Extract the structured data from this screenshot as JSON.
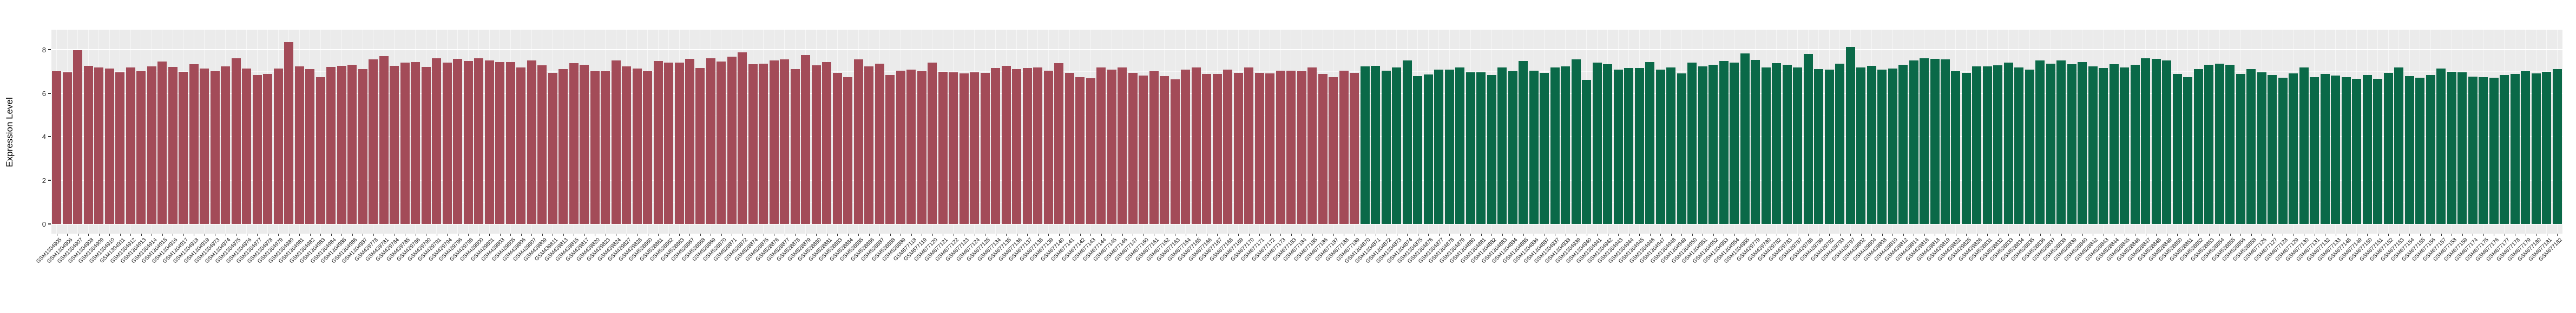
{
  "chart_data": {
    "type": "bar",
    "title": "",
    "xlabel": "",
    "ylabel": "Expression Level",
    "yticks": [
      0,
      2,
      4,
      6,
      8
    ],
    "yticks_minor": [
      1,
      3,
      5,
      7
    ],
    "ylim": [
      0,
      8.9
    ],
    "grid": "on",
    "legend": "none",
    "panel_background": "#EBEBEB",
    "grid_color": "#FFFFFF",
    "series": [
      {
        "name": "left-red-group",
        "color": "#A34B58",
        "labels": [
          "GSM1304905",
          "GSM1304906",
          "GSM1304907",
          "GSM1304908",
          "GSM1304909",
          "GSM1304910",
          "GSM1304911",
          "GSM1304912",
          "GSM1304913",
          "GSM1304914",
          "GSM1304915",
          "GSM1304916",
          "GSM1304917",
          "GSM1304918",
          "GSM1304919",
          "GSM1304973",
          "GSM1304974",
          "GSM1304975",
          "GSM1304976",
          "GSM1304977",
          "GSM1304978",
          "GSM1304979",
          "GSM1304980",
          "GSM1304981",
          "GSM1304982",
          "GSM1304983",
          "GSM1304984",
          "GSM1304985",
          "GSM1304986",
          "GSM1304987",
          "GSM439778",
          "GSM439781",
          "GSM439784",
          "GSM439785",
          "GSM439786",
          "GSM439790",
          "GSM439791",
          "GSM439794",
          "GSM439796",
          "GSM439798",
          "GSM439800",
          "GSM439801",
          "GSM439803",
          "GSM439805",
          "GSM439806",
          "GSM439807",
          "GSM439809",
          "GSM439811",
          "GSM439813",
          "GSM439815",
          "GSM439817",
          "GSM439820",
          "GSM439823",
          "GSM439824",
          "GSM439827",
          "GSM439828",
          "GSM528860",
          "GSM528861",
          "GSM528862",
          "GSM528863",
          "GSM528867",
          "GSM528868",
          "GSM528869",
          "GSM528870",
          "GSM528871",
          "GSM528872",
          "GSM528874",
          "GSM528875",
          "GSM528876",
          "GSM528877",
          "GSM528878",
          "GSM528879",
          "GSM528880",
          "GSM528881",
          "GSM528883",
          "GSM528884",
          "GSM528885",
          "GSM528886",
          "GSM528887",
          "GSM528888",
          "GSM528889",
          "GSM677118",
          "GSM677119",
          "GSM677120",
          "GSM677121",
          "GSM677122",
          "GSM677123",
          "GSM677124",
          "GSM677125",
          "GSM677134",
          "GSM677135",
          "GSM677136",
          "GSM677137",
          "GSM677138",
          "GSM677139",
          "GSM677140",
          "GSM677141",
          "GSM677142",
          "GSM677143",
          "GSM677144",
          "GSM677145",
          "GSM677146",
          "GSM677147",
          "GSM677160",
          "GSM677161",
          "GSM677162",
          "GSM677163",
          "GSM677164",
          "GSM677165",
          "GSM677166",
          "GSM677167",
          "GSM677168",
          "GSM677169",
          "GSM677170",
          "GSM677171",
          "GSM677172",
          "GSM677173",
          "GSM677183",
          "GSM677184",
          "GSM677185",
          "GSM677186",
          "GSM677187",
          "GSM677188",
          "GSM677189"
        ],
        "values": [
          7.0,
          6.95,
          7.97,
          7.26,
          7.17,
          7.12,
          6.95,
          7.18,
          7.0,
          7.24,
          7.45,
          7.21,
          6.98,
          7.33,
          7.14,
          7.0,
          7.23,
          7.61,
          7.14,
          6.84,
          6.89,
          7.14,
          8.35,
          7.23,
          7.1,
          6.73,
          7.2,
          7.26,
          7.31,
          7.1,
          7.55,
          7.69,
          7.26,
          7.41,
          7.43,
          7.2,
          7.6,
          7.39,
          7.57,
          7.47,
          7.59,
          7.49,
          7.43,
          7.43,
          7.19,
          7.49,
          7.27,
          6.94,
          7.11,
          7.37,
          7.29,
          7.0,
          7.0,
          7.49,
          7.23,
          7.13,
          7.0,
          7.47,
          7.39,
          7.39,
          7.57,
          7.15,
          7.59,
          7.45,
          7.67,
          7.87,
          7.33,
          7.35,
          7.49,
          7.55,
          7.11,
          7.75,
          7.27,
          7.43,
          6.94,
          6.74,
          7.55,
          7.23,
          7.35,
          6.84,
          7.04,
          7.09,
          7.0,
          7.41,
          6.98,
          6.96,
          6.9,
          6.96,
          6.92,
          7.15,
          7.25,
          7.11,
          7.15,
          7.17,
          7.04,
          7.37,
          6.92,
          6.74,
          6.68,
          7.19,
          7.07,
          7.17,
          6.94,
          6.8,
          7.0,
          6.78,
          6.64,
          7.09,
          7.17,
          6.88,
          6.88,
          7.09,
          6.94,
          7.17,
          6.92,
          6.9,
          7.04,
          7.04,
          7.0,
          7.17,
          6.88,
          6.74,
          7.04,
          6.94
        ]
      },
      {
        "name": "right-green-group",
        "color": "#0A6948",
        "labels": [
          "GSM1304870",
          "GSM1304871",
          "GSM1304872",
          "GSM1304873",
          "GSM1304874",
          "GSM1304875",
          "GSM1304876",
          "GSM1304877",
          "GSM1304878",
          "GSM1304879",
          "GSM1304880",
          "GSM1304881",
          "GSM1304882",
          "GSM1304883",
          "GSM1304884",
          "GSM1304885",
          "GSM1304886",
          "GSM1304887",
          "GSM1304937",
          "GSM1304938",
          "GSM1304939",
          "GSM1304940",
          "GSM1304941",
          "GSM1304942",
          "GSM1304943",
          "GSM1304944",
          "GSM1304945",
          "GSM1304946",
          "GSM1304947",
          "GSM1304948",
          "GSM1304949",
          "GSM1304950",
          "GSM1304951",
          "GSM1304952",
          "GSM1304953",
          "GSM1304954",
          "GSM1304955",
          "GSM439779",
          "GSM439780",
          "GSM439782",
          "GSM439783",
          "GSM439787",
          "GSM439788",
          "GSM439789",
          "GSM439792",
          "GSM439793",
          "GSM439797",
          "GSM439802",
          "GSM439804",
          "GSM439808",
          "GSM439810",
          "GSM439812",
          "GSM439814",
          "GSM439816",
          "GSM439818",
          "GSM439819",
          "GSM439822",
          "GSM439825",
          "GSM439826",
          "GSM528831",
          "GSM528832",
          "GSM528833",
          "GSM528834",
          "GSM528835",
          "GSM528836",
          "GSM528837",
          "GSM528838",
          "GSM528839",
          "GSM528840",
          "GSM528842",
          "GSM528843",
          "GSM528844",
          "GSM528845",
          "GSM528846",
          "GSM528847",
          "GSM528848",
          "GSM528849",
          "GSM528850",
          "GSM528851",
          "GSM528852",
          "GSM528853",
          "GSM528854",
          "GSM528855",
          "GSM528856",
          "GSM528858",
          "GSM677126",
          "GSM677127",
          "GSM677128",
          "GSM677129",
          "GSM677130",
          "GSM677131",
          "GSM677132",
          "GSM677133",
          "GSM677148",
          "GSM677149",
          "GSM677150",
          "GSM677151",
          "GSM677152",
          "GSM677153",
          "GSM677154",
          "GSM677155",
          "GSM677156",
          "GSM677157",
          "GSM677158",
          "GSM677159",
          "GSM677174",
          "GSM677175",
          "GSM677176",
          "GSM677177",
          "GSM677178",
          "GSM677179",
          "GSM677180",
          "GSM677181",
          "GSM677182"
        ],
        "values": [
          7.23,
          7.25,
          7.04,
          7.19,
          7.49,
          6.78,
          6.86,
          7.07,
          7.07,
          7.19,
          6.96,
          6.96,
          6.84,
          7.17,
          7.0,
          7.47,
          7.04,
          6.94,
          7.17,
          7.23,
          7.55,
          6.6,
          7.39,
          7.33,
          7.07,
          7.15,
          7.15,
          7.43,
          7.07,
          7.17,
          6.9,
          7.41,
          7.23,
          7.31,
          7.47,
          7.39,
          7.83,
          7.53,
          7.19,
          7.37,
          7.29,
          7.17,
          7.79,
          7.11,
          7.07,
          7.35,
          8.12,
          7.17,
          7.25,
          7.09,
          7.13,
          7.29,
          7.49,
          7.59,
          7.57,
          7.55,
          7.0,
          6.94,
          7.23,
          7.23,
          7.27,
          7.39,
          7.19,
          7.09,
          7.49,
          7.35,
          7.49,
          7.33,
          7.43,
          7.23,
          7.15,
          7.33,
          7.17,
          7.31,
          7.59,
          7.57,
          7.49,
          6.88,
          6.74,
          7.11,
          7.29,
          7.35,
          7.31,
          6.88,
          7.11,
          6.96,
          6.84,
          6.7,
          6.9,
          7.19,
          6.74,
          6.88,
          6.8,
          6.74,
          6.66,
          6.84,
          6.66,
          6.92,
          7.19,
          6.78,
          6.72,
          6.84,
          7.13,
          6.98,
          6.96,
          6.76,
          6.74,
          6.7,
          6.82,
          6.88,
          7.0,
          6.9,
          6.98,
          7.1
        ]
      }
    ]
  }
}
